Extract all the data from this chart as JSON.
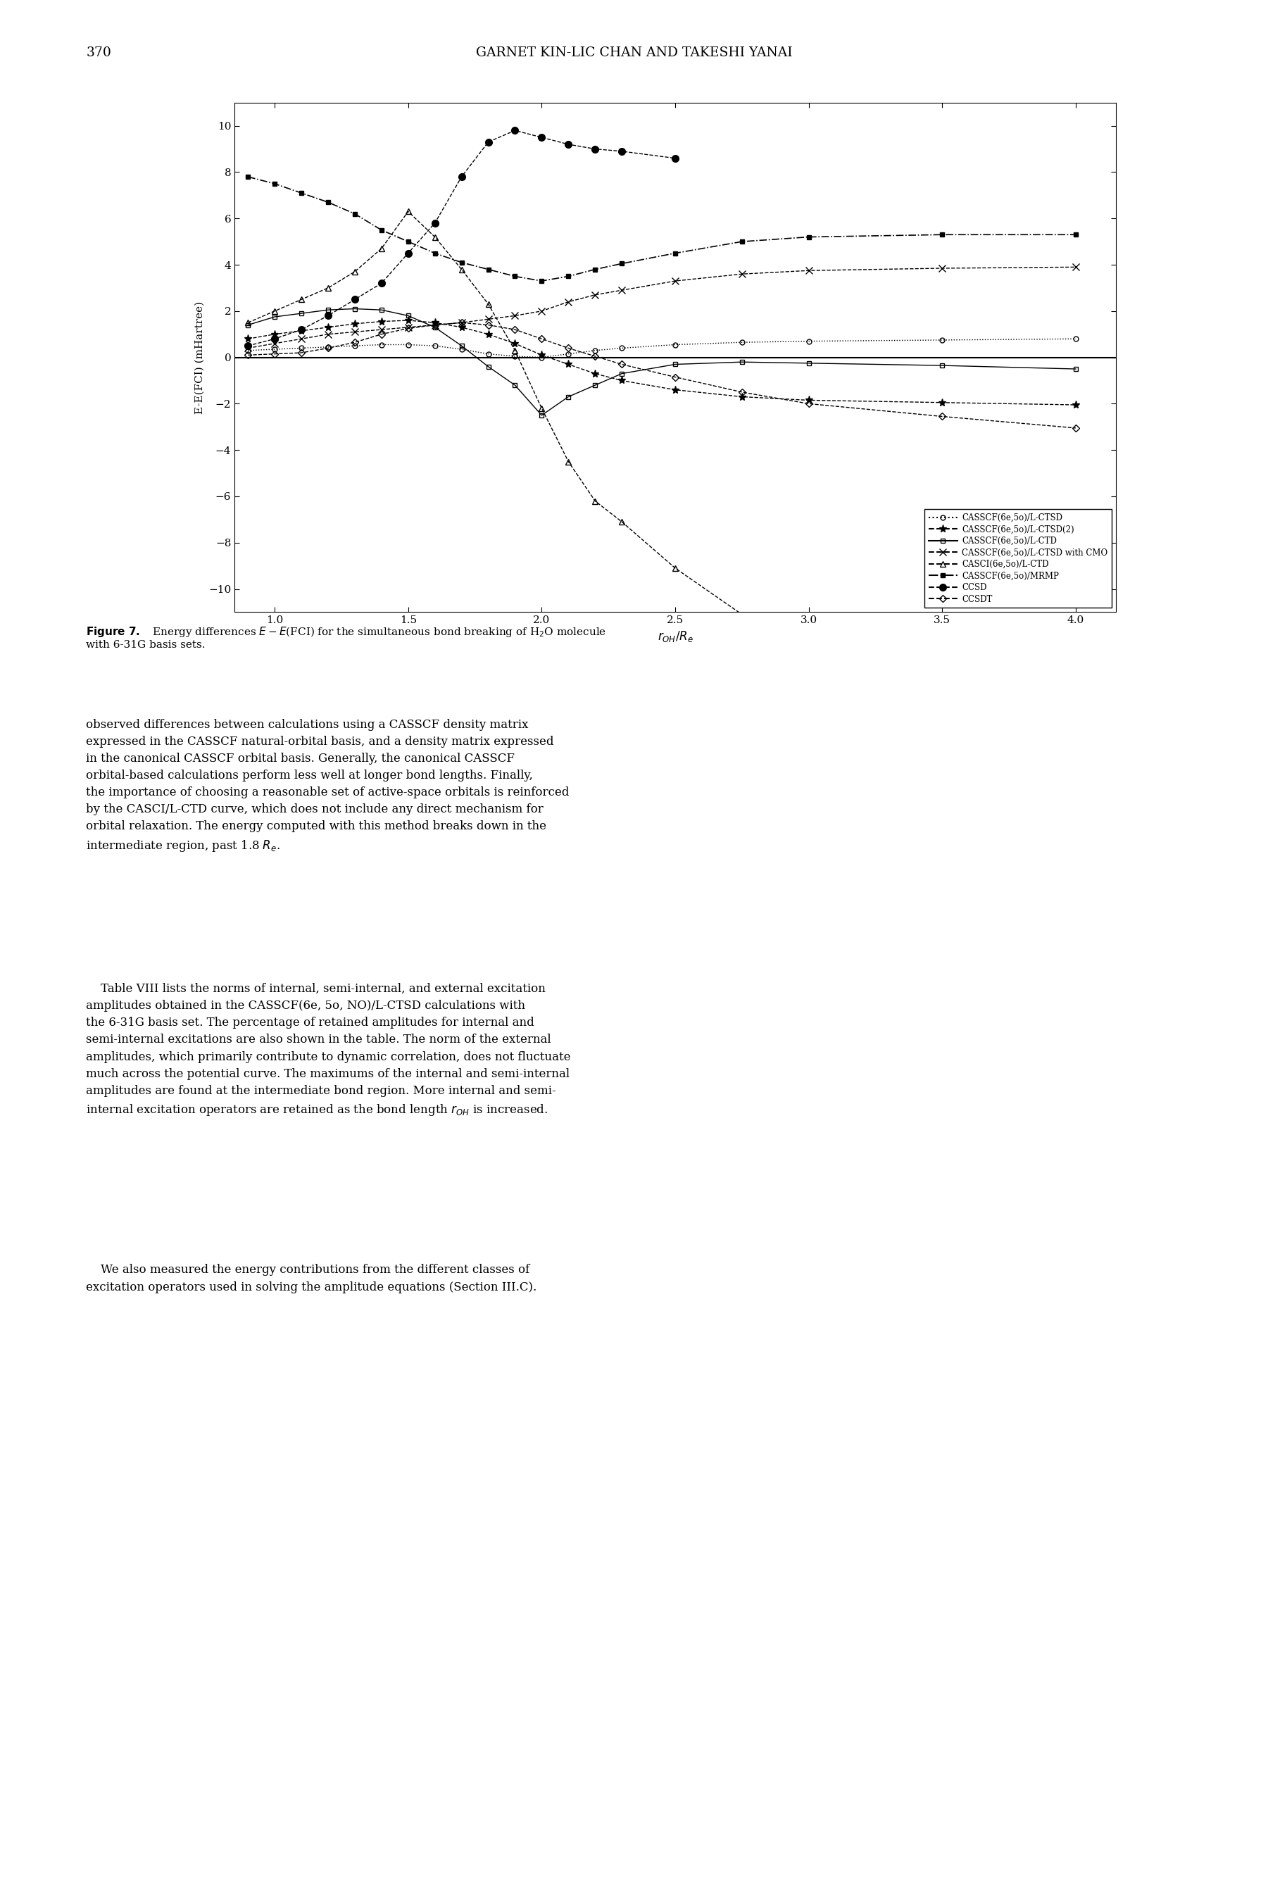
{
  "page_number": "370",
  "header": "GARNET KIN-LIC CHAN AND TAKESHI YANAI",
  "xlim": [
    0.85,
    4.15
  ],
  "ylim": [
    -11,
    11
  ],
  "yticks": [
    -10,
    -8,
    -6,
    -4,
    -2,
    0,
    2,
    4,
    6,
    8,
    10
  ],
  "xticks": [
    1.0,
    1.5,
    2.0,
    2.5,
    3.0,
    3.5,
    4.0
  ],
  "x_lctsd": [
    0.9,
    1.0,
    1.1,
    1.2,
    1.3,
    1.4,
    1.5,
    1.6,
    1.7,
    1.8,
    1.9,
    2.0,
    2.1,
    2.2,
    2.3,
    2.5,
    2.75,
    3.0,
    3.5,
    4.0
  ],
  "y_lctsd": [
    0.3,
    0.35,
    0.4,
    0.45,
    0.5,
    0.55,
    0.55,
    0.5,
    0.35,
    0.15,
    0.05,
    0.0,
    0.15,
    0.3,
    0.4,
    0.55,
    0.65,
    0.7,
    0.75,
    0.8
  ],
  "x_lctsd2": [
    0.9,
    1.0,
    1.1,
    1.2,
    1.3,
    1.4,
    1.5,
    1.6,
    1.7,
    1.8,
    1.9,
    2.0,
    2.1,
    2.2,
    2.3,
    2.5,
    2.75,
    3.0,
    3.5,
    4.0
  ],
  "y_lctsd2": [
    0.8,
    1.0,
    1.15,
    1.3,
    1.45,
    1.55,
    1.6,
    1.5,
    1.3,
    1.0,
    0.6,
    0.1,
    -0.3,
    -0.7,
    -1.0,
    -1.4,
    -1.7,
    -1.85,
    -1.95,
    -2.05
  ],
  "x_lctd": [
    0.9,
    1.0,
    1.1,
    1.2,
    1.3,
    1.4,
    1.5,
    1.6,
    1.7,
    1.8,
    1.9,
    2.0,
    2.1,
    2.2,
    2.3,
    2.5,
    2.75,
    3.0,
    3.5,
    4.0
  ],
  "y_lctd": [
    1.4,
    1.75,
    1.9,
    2.05,
    2.1,
    2.05,
    1.8,
    1.3,
    0.5,
    -0.4,
    -1.2,
    -2.5,
    -1.7,
    -1.2,
    -0.7,
    -0.3,
    -0.2,
    -0.25,
    -0.35,
    -0.5
  ],
  "x_cmo": [
    0.9,
    1.0,
    1.1,
    1.2,
    1.3,
    1.4,
    1.5,
    1.6,
    1.7,
    1.8,
    1.9,
    2.0,
    2.1,
    2.2,
    2.3,
    2.5,
    2.75,
    3.0,
    3.5,
    4.0
  ],
  "y_cmo": [
    0.4,
    0.6,
    0.8,
    1.0,
    1.1,
    1.2,
    1.3,
    1.4,
    1.5,
    1.65,
    1.8,
    2.0,
    2.4,
    2.7,
    2.9,
    3.3,
    3.6,
    3.75,
    3.85,
    3.9
  ],
  "x_casci": [
    0.9,
    1.0,
    1.1,
    1.2,
    1.3,
    1.4,
    1.5,
    1.6,
    1.7,
    1.8,
    1.9,
    2.0,
    2.1,
    2.2,
    2.3,
    2.5,
    2.75
  ],
  "y_casci": [
    1.5,
    2.0,
    2.5,
    3.0,
    3.7,
    4.7,
    6.3,
    5.2,
    3.8,
    2.3,
    0.3,
    -2.2,
    -4.5,
    -6.2,
    -7.1,
    -9.1,
    -11.1
  ],
  "x_mrmp": [
    0.9,
    1.0,
    1.1,
    1.2,
    1.3,
    1.4,
    1.5,
    1.6,
    1.7,
    1.8,
    1.9,
    2.0,
    2.1,
    2.2,
    2.3,
    2.5,
    2.75,
    3.0,
    3.5,
    4.0
  ],
  "y_mrmp": [
    7.8,
    7.5,
    7.1,
    6.7,
    6.2,
    5.5,
    5.0,
    4.5,
    4.1,
    3.8,
    3.5,
    3.3,
    3.5,
    3.8,
    4.05,
    4.5,
    5.0,
    5.2,
    5.3,
    5.3
  ],
  "x_ccsd": [
    0.9,
    1.0,
    1.1,
    1.2,
    1.3,
    1.4,
    1.5,
    1.6,
    1.7,
    1.8,
    1.9,
    2.0,
    2.1,
    2.2,
    2.3,
    2.5
  ],
  "y_ccsd": [
    0.5,
    0.8,
    1.2,
    1.8,
    2.5,
    3.2,
    4.5,
    5.8,
    7.8,
    9.3,
    9.8,
    9.5,
    9.2,
    9.0,
    8.9,
    8.6
  ],
  "x_ccsdt": [
    0.9,
    1.0,
    1.1,
    1.2,
    1.3,
    1.4,
    1.5,
    1.6,
    1.7,
    1.8,
    1.9,
    2.0,
    2.1,
    2.2,
    2.3,
    2.5,
    2.75,
    3.0,
    3.5,
    4.0
  ],
  "y_ccsdt": [
    0.1,
    0.15,
    0.2,
    0.4,
    0.65,
    1.0,
    1.25,
    1.4,
    1.5,
    1.4,
    1.2,
    0.8,
    0.4,
    0.05,
    -0.3,
    -0.85,
    -1.5,
    -2.0,
    -2.55,
    -3.05
  ]
}
